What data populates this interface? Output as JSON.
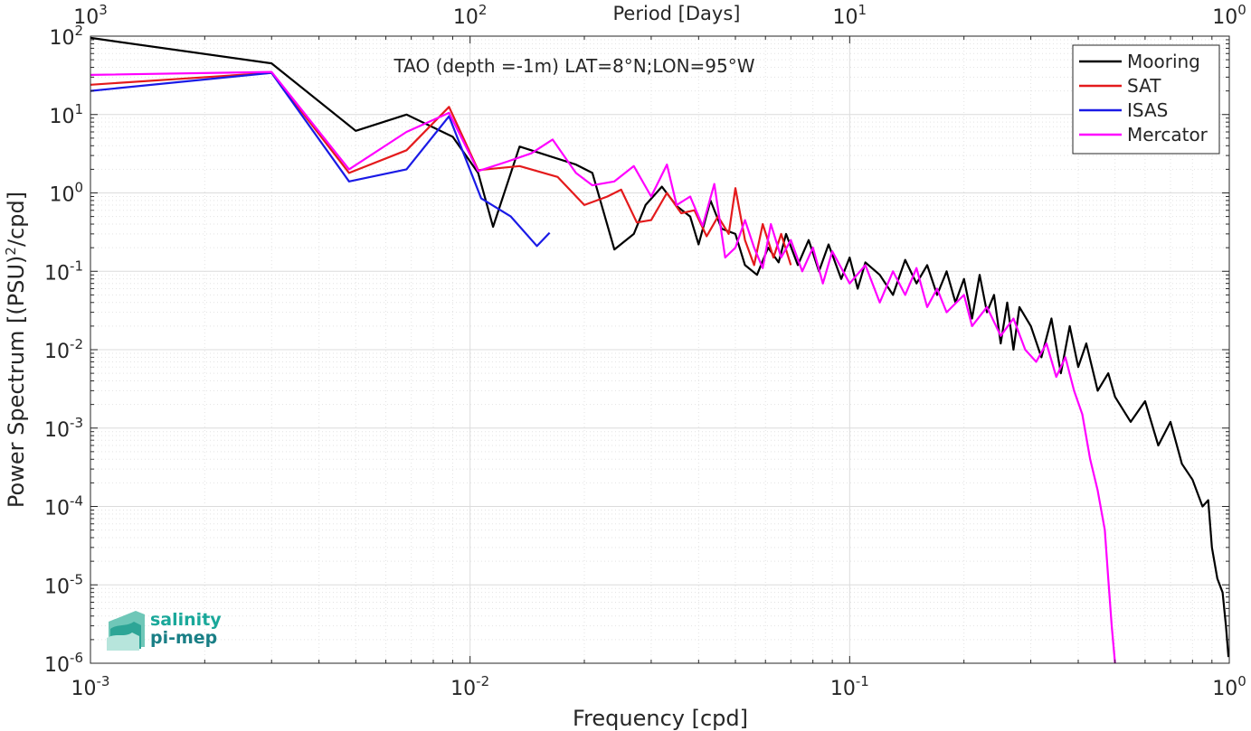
{
  "chart_data": {
    "type": "line",
    "title": "TAO (depth =-1m) LAT=8°N;LON=95°W",
    "xlabel": "Frequency [cpd]",
    "ylabel": "Power Spectrum [(PSU)",
    "ylabel_sup": "2",
    "ylabel_tail": "/cpd]",
    "top_axis_label": "Period [Days]",
    "x_scale": "log",
    "y_scale": "log",
    "xlim": [
      0.001,
      1
    ],
    "ylim": [
      1e-06,
      100
    ],
    "grid": true,
    "minor_grid": true,
    "legend_position": "top-right",
    "x_ticks": [
      {
        "value": 0.001,
        "base": "10",
        "exp": "-3"
      },
      {
        "value": 0.01,
        "base": "10",
        "exp": "-2"
      },
      {
        "value": 0.1,
        "base": "10",
        "exp": "-1"
      },
      {
        "value": 1,
        "base": "10",
        "exp": "0"
      }
    ],
    "top_ticks": [
      {
        "value": 0.001,
        "base": "10",
        "exp": "3"
      },
      {
        "value": 0.01,
        "base": "10",
        "exp": "2"
      },
      {
        "value": 0.1,
        "base": "10",
        "exp": "1"
      },
      {
        "value": 1,
        "base": "10",
        "exp": "0"
      }
    ],
    "y_ticks": [
      {
        "value": 100,
        "base": "10",
        "exp": "2"
      },
      {
        "value": 10,
        "base": "10",
        "exp": "1"
      },
      {
        "value": 1,
        "base": "10",
        "exp": "0"
      },
      {
        "value": 0.1,
        "base": "10",
        "exp": "-1"
      },
      {
        "value": 0.01,
        "base": "10",
        "exp": "-2"
      },
      {
        "value": 0.001,
        "base": "10",
        "exp": "-3"
      },
      {
        "value": 0.0001,
        "base": "10",
        "exp": "-4"
      },
      {
        "value": 1e-05,
        "base": "10",
        "exp": "-5"
      },
      {
        "value": 1e-06,
        "base": "10",
        "exp": "-6"
      }
    ],
    "series": [
      {
        "name": "Mooring",
        "color": "#000000",
        "points": [
          [
            0.001,
            95
          ],
          [
            0.003,
            45
          ],
          [
            0.005,
            6.2
          ],
          [
            0.0068,
            10
          ],
          [
            0.009,
            5.2
          ],
          [
            0.0105,
            1.8
          ],
          [
            0.0115,
            0.37
          ],
          [
            0.0135,
            3.9
          ],
          [
            0.016,
            3.0
          ],
          [
            0.019,
            2.3
          ],
          [
            0.021,
            1.8
          ],
          [
            0.024,
            0.19
          ],
          [
            0.027,
            0.3
          ],
          [
            0.029,
            0.7
          ],
          [
            0.032,
            1.2
          ],
          [
            0.035,
            0.68
          ],
          [
            0.038,
            0.5
          ],
          [
            0.04,
            0.22
          ],
          [
            0.043,
            0.8
          ],
          [
            0.046,
            0.35
          ],
          [
            0.05,
            0.3
          ],
          [
            0.053,
            0.12
          ],
          [
            0.057,
            0.09
          ],
          [
            0.061,
            0.2
          ],
          [
            0.065,
            0.13
          ],
          [
            0.068,
            0.3
          ],
          [
            0.073,
            0.12
          ],
          [
            0.078,
            0.25
          ],
          [
            0.083,
            0.1
          ],
          [
            0.088,
            0.22
          ],
          [
            0.095,
            0.08
          ],
          [
            0.1,
            0.15
          ],
          [
            0.105,
            0.06
          ],
          [
            0.11,
            0.13
          ],
          [
            0.12,
            0.09
          ],
          [
            0.13,
            0.05
          ],
          [
            0.14,
            0.14
          ],
          [
            0.15,
            0.07
          ],
          [
            0.16,
            0.12
          ],
          [
            0.17,
            0.05
          ],
          [
            0.18,
            0.1
          ],
          [
            0.19,
            0.04
          ],
          [
            0.2,
            0.08
          ],
          [
            0.21,
            0.025
          ],
          [
            0.22,
            0.09
          ],
          [
            0.23,
            0.03
          ],
          [
            0.24,
            0.05
          ],
          [
            0.25,
            0.012
          ],
          [
            0.26,
            0.04
          ],
          [
            0.27,
            0.01
          ],
          [
            0.28,
            0.035
          ],
          [
            0.3,
            0.02
          ],
          [
            0.32,
            0.008
          ],
          [
            0.34,
            0.025
          ],
          [
            0.36,
            0.005
          ],
          [
            0.38,
            0.02
          ],
          [
            0.4,
            0.006
          ],
          [
            0.42,
            0.012
          ],
          [
            0.45,
            0.003
          ],
          [
            0.48,
            0.005
          ],
          [
            0.5,
            0.0025
          ],
          [
            0.55,
            0.0012
          ],
          [
            0.6,
            0.0022
          ],
          [
            0.65,
            0.0006
          ],
          [
            0.7,
            0.0012
          ],
          [
            0.75,
            0.00035
          ],
          [
            0.8,
            0.00022
          ],
          [
            0.85,
            0.0001
          ],
          [
            0.88,
            0.00012
          ],
          [
            0.9,
            3e-05
          ],
          [
            0.93,
            1.2e-05
          ],
          [
            0.96,
            8e-06
          ],
          [
            0.98,
            3e-06
          ],
          [
            0.995,
            1.2e-06
          ]
        ]
      },
      {
        "name": "SAT",
        "color": "#e41a1c",
        "points": [
          [
            0.001,
            24
          ],
          [
            0.003,
            34
          ],
          [
            0.0048,
            1.8
          ],
          [
            0.0068,
            3.5
          ],
          [
            0.0088,
            12.5
          ],
          [
            0.0105,
            1.95
          ],
          [
            0.0135,
            2.2
          ],
          [
            0.017,
            1.6
          ],
          [
            0.02,
            0.7
          ],
          [
            0.023,
            0.9
          ],
          [
            0.025,
            1.1
          ],
          [
            0.0275,
            0.42
          ],
          [
            0.03,
            0.45
          ],
          [
            0.033,
            1.0
          ],
          [
            0.036,
            0.55
          ],
          [
            0.039,
            0.6
          ],
          [
            0.042,
            0.28
          ],
          [
            0.045,
            0.5
          ],
          [
            0.048,
            0.3
          ],
          [
            0.05,
            1.15
          ],
          [
            0.053,
            0.25
          ],
          [
            0.056,
            0.12
          ],
          [
            0.059,
            0.4
          ],
          [
            0.063,
            0.15
          ],
          [
            0.066,
            0.3
          ],
          [
            0.07,
            0.12
          ]
        ]
      },
      {
        "name": "ISAS",
        "color": "#1a1ae6",
        "points": [
          [
            0.001,
            20
          ],
          [
            0.003,
            34
          ],
          [
            0.0048,
            1.4
          ],
          [
            0.0068,
            2.0
          ],
          [
            0.0088,
            9.5
          ],
          [
            0.0107,
            0.85
          ],
          [
            0.0128,
            0.5
          ],
          [
            0.015,
            0.21
          ],
          [
            0.0162,
            0.31
          ]
        ]
      },
      {
        "name": "Mercator",
        "color": "#ff00ff",
        "points": [
          [
            0.001,
            32
          ],
          [
            0.003,
            35
          ],
          [
            0.0048,
            2.0
          ],
          [
            0.0068,
            6.0
          ],
          [
            0.0088,
            10.5
          ],
          [
            0.0105,
            1.9
          ],
          [
            0.0125,
            2.5
          ],
          [
            0.0145,
            3.2
          ],
          [
            0.0165,
            4.8
          ],
          [
            0.019,
            1.8
          ],
          [
            0.021,
            1.25
          ],
          [
            0.024,
            1.4
          ],
          [
            0.027,
            2.2
          ],
          [
            0.03,
            0.9
          ],
          [
            0.033,
            2.3
          ],
          [
            0.035,
            0.7
          ],
          [
            0.038,
            0.9
          ],
          [
            0.041,
            0.38
          ],
          [
            0.044,
            1.3
          ],
          [
            0.047,
            0.15
          ],
          [
            0.05,
            0.2
          ],
          [
            0.053,
            0.45
          ],
          [
            0.056,
            0.2
          ],
          [
            0.059,
            0.11
          ],
          [
            0.062,
            0.4
          ],
          [
            0.066,
            0.15
          ],
          [
            0.07,
            0.25
          ],
          [
            0.075,
            0.1
          ],
          [
            0.08,
            0.2
          ],
          [
            0.085,
            0.07
          ],
          [
            0.09,
            0.18
          ],
          [
            0.1,
            0.07
          ],
          [
            0.11,
            0.12
          ],
          [
            0.12,
            0.04
          ],
          [
            0.13,
            0.1
          ],
          [
            0.14,
            0.05
          ],
          [
            0.15,
            0.11
          ],
          [
            0.16,
            0.035
          ],
          [
            0.17,
            0.06
          ],
          [
            0.18,
            0.03
          ],
          [
            0.2,
            0.05
          ],
          [
            0.21,
            0.02
          ],
          [
            0.23,
            0.035
          ],
          [
            0.25,
            0.015
          ],
          [
            0.27,
            0.025
          ],
          [
            0.29,
            0.01
          ],
          [
            0.31,
            0.007
          ],
          [
            0.33,
            0.012
          ],
          [
            0.35,
            0.0045
          ],
          [
            0.37,
            0.008
          ],
          [
            0.39,
            0.003
          ],
          [
            0.41,
            0.0015
          ],
          [
            0.43,
            0.0004
          ],
          [
            0.45,
            0.00016
          ],
          [
            0.47,
            5e-05
          ],
          [
            0.48,
            1.2e-05
          ],
          [
            0.49,
            3e-06
          ],
          [
            0.5,
            1e-06
          ]
        ]
      }
    ]
  },
  "logo": {
    "line1": "salinity",
    "line2": "pi-mep",
    "color": "#1aa89a"
  }
}
